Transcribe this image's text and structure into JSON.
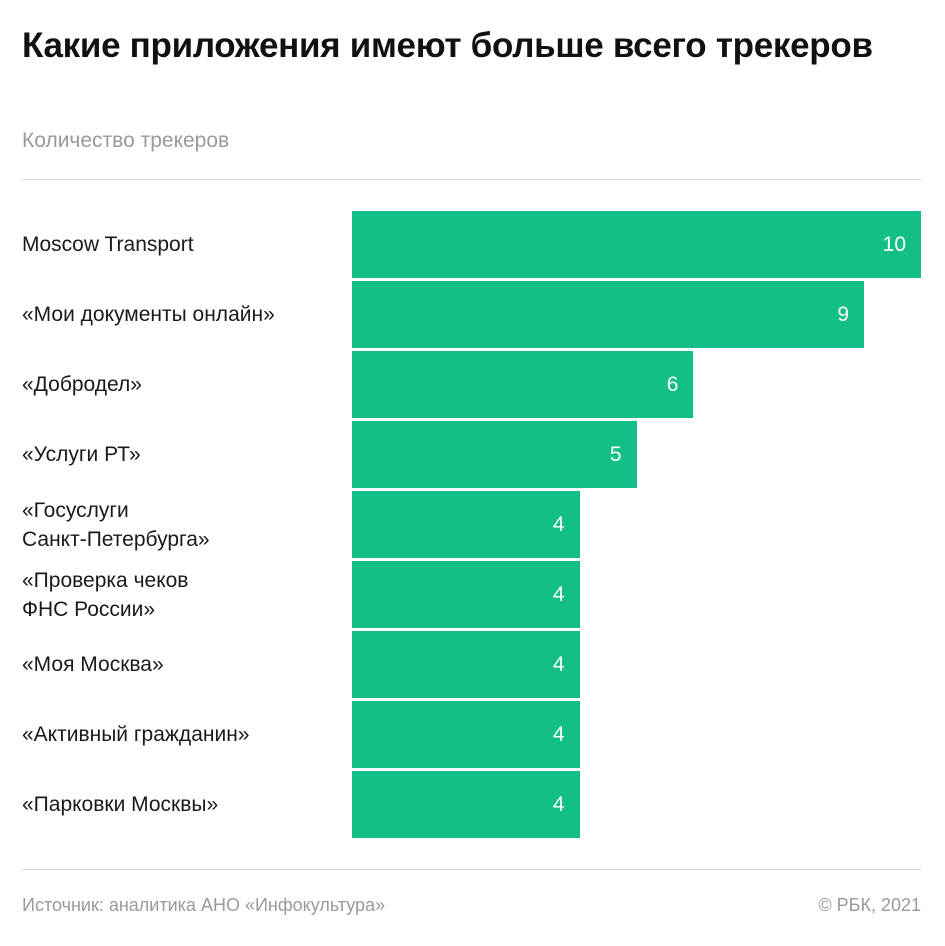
{
  "header": {
    "title": "Какие приложения имеют больше всего трекеров",
    "subtitle": "Количество трекеров"
  },
  "footer": {
    "source": "Источник: аналитика АНО «Инфокультура»",
    "copyright": "© РБК, 2021"
  },
  "colors": {
    "bar": "#13be88",
    "value_text": "#ffffff"
  },
  "chart_data": {
    "type": "bar",
    "orientation": "horizontal",
    "title": "Какие приложения имеют больше всего трекеров",
    "subtitle": "Количество трекеров",
    "categories": [
      "Moscow Transport",
      "«Мои документы онлайн»",
      "«Добродел»",
      "«Услуги РТ»",
      "«Госуслуги Санкт-Петербурга»",
      "«Проверка чеков ФНС России»",
      "«Моя Москва»",
      "«Активный гражданин»",
      "«Парковки Москвы»"
    ],
    "category_lines": [
      [
        "Moscow Transport"
      ],
      [
        "«Мои документы онлайн»"
      ],
      [
        "«Добродел»"
      ],
      [
        "«Услуги РТ»"
      ],
      [
        "«Госуслуги",
        "Санкт-Петербурга»"
      ],
      [
        "«Проверка чеков",
        "ФНС России»"
      ],
      [
        "«Моя Москва»"
      ],
      [
        "«Активный гражданин»"
      ],
      [
        "«Парковки Москвы»"
      ]
    ],
    "values": [
      10,
      9,
      6,
      5,
      4,
      4,
      4,
      4,
      4
    ],
    "value_labels": [
      "10",
      "9",
      "6",
      "5",
      "4",
      "4",
      "4",
      "4",
      "4"
    ],
    "xlim": [
      0,
      10
    ],
    "grid": false,
    "legend": "none"
  }
}
